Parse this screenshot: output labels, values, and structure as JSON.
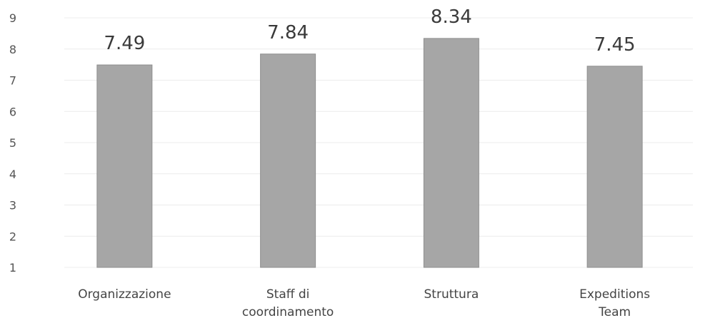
{
  "chart_data": {
    "type": "bar",
    "categories": [
      [
        "Organizzazione"
      ],
      [
        "Staff di",
        "coordinamento"
      ],
      [
        "Struttura"
      ],
      [
        "Expeditions",
        "Team"
      ]
    ],
    "values": [
      7.49,
      7.84,
      8.34,
      7.45
    ],
    "value_labels": [
      "7.49",
      "7.84",
      "8.34",
      "7.45"
    ],
    "yticks": [
      "1",
      "2",
      "3",
      "4",
      "5",
      "6",
      "7",
      "8",
      "9"
    ],
    "ylim": [
      1,
      9
    ],
    "grid": true,
    "legend": "none",
    "colors": {
      "bar": "#a6a6a6",
      "bar_edge": "#8e8e8e",
      "grid": "#ececec"
    }
  }
}
